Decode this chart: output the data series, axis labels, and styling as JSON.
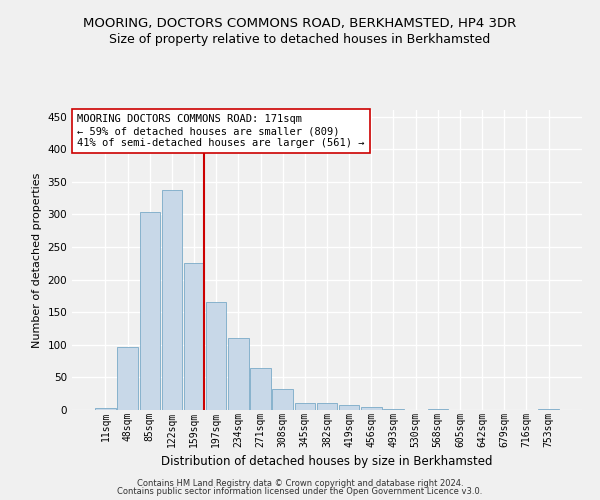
{
  "title": "MOORING, DOCTORS COMMONS ROAD, BERKHAMSTED, HP4 3DR",
  "subtitle": "Size of property relative to detached houses in Berkhamsted",
  "xlabel": "Distribution of detached houses by size in Berkhamsted",
  "ylabel": "Number of detached properties",
  "bar_labels": [
    "11sqm",
    "48sqm",
    "85sqm",
    "122sqm",
    "159sqm",
    "197sqm",
    "234sqm",
    "271sqm",
    "308sqm",
    "345sqm",
    "382sqm",
    "419sqm",
    "456sqm",
    "493sqm",
    "530sqm",
    "568sqm",
    "605sqm",
    "642sqm",
    "679sqm",
    "716sqm",
    "753sqm"
  ],
  "bar_values": [
    3,
    97,
    303,
    337,
    225,
    165,
    110,
    65,
    32,
    11,
    10,
    7,
    4,
    1,
    0,
    1,
    0,
    0,
    0,
    0,
    1
  ],
  "bar_color": "#c8d8e8",
  "bar_edgecolor": "#7aaac8",
  "vline_color": "#cc0000",
  "annotation_text": "MOORING DOCTORS COMMONS ROAD: 171sqm\n← 59% of detached houses are smaller (809)\n41% of semi-detached houses are larger (561) →",
  "annotation_box_color": "#ffffff",
  "annotation_box_edgecolor": "#cc0000",
  "ylim": [
    0,
    460
  ],
  "yticks": [
    0,
    50,
    100,
    150,
    200,
    250,
    300,
    350,
    400,
    450
  ],
  "footer1": "Contains HM Land Registry data © Crown copyright and database right 2024.",
  "footer2": "Contains public sector information licensed under the Open Government Licence v3.0.",
  "bg_color": "#f0f0f0",
  "grid_color": "#ffffff",
  "title_fontsize": 9.5,
  "subtitle_fontsize": 9,
  "xlabel_fontsize": 8.5,
  "ylabel_fontsize": 8,
  "tick_fontsize": 7,
  "footer_fontsize": 6,
  "annotation_fontsize": 7.5
}
